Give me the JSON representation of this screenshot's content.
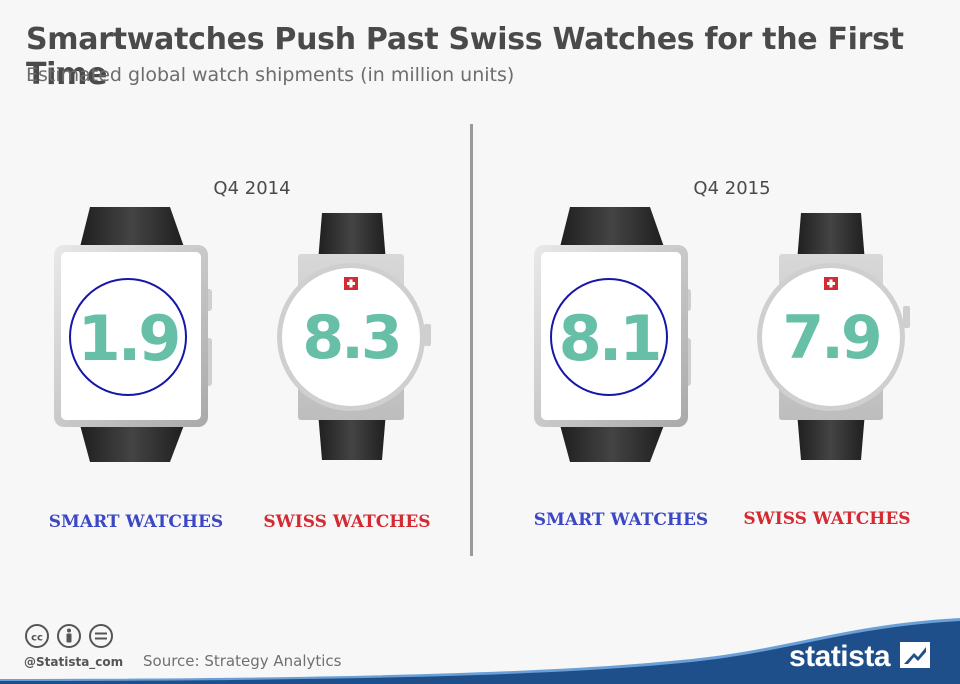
{
  "title": "Smartwatches Push Past Swiss Watches for the First Time",
  "subtitle": "Estimated global watch shipments (in million units)",
  "colors": {
    "value_text": "#66bfa6",
    "smart_label": "#3b47c4",
    "swiss_label": "#d42a32",
    "circle_outline": "#1616a8",
    "strap_dark": "#2f2f2f",
    "brand_blue": "#1f4f8a"
  },
  "chart_data": {
    "type": "table",
    "categories": [
      "Q4 2014",
      "Q4 2015"
    ],
    "series": [
      {
        "name": "SMART WATCHES",
        "values": [
          1.9,
          8.1
        ]
      },
      {
        "name": "SWISS WATCHES",
        "values": [
          8.3,
          7.9
        ]
      }
    ],
    "value_labels": [
      [
        "1.9",
        "8.3"
      ],
      [
        "8.1",
        "7.9"
      ]
    ]
  },
  "footer": {
    "handle": "@Statista_com",
    "source": "Source: Strategy Analytics",
    "brand": "statista",
    "license_icons": [
      "cc-icon",
      "attribution-icon",
      "no-derivatives-icon"
    ]
  }
}
